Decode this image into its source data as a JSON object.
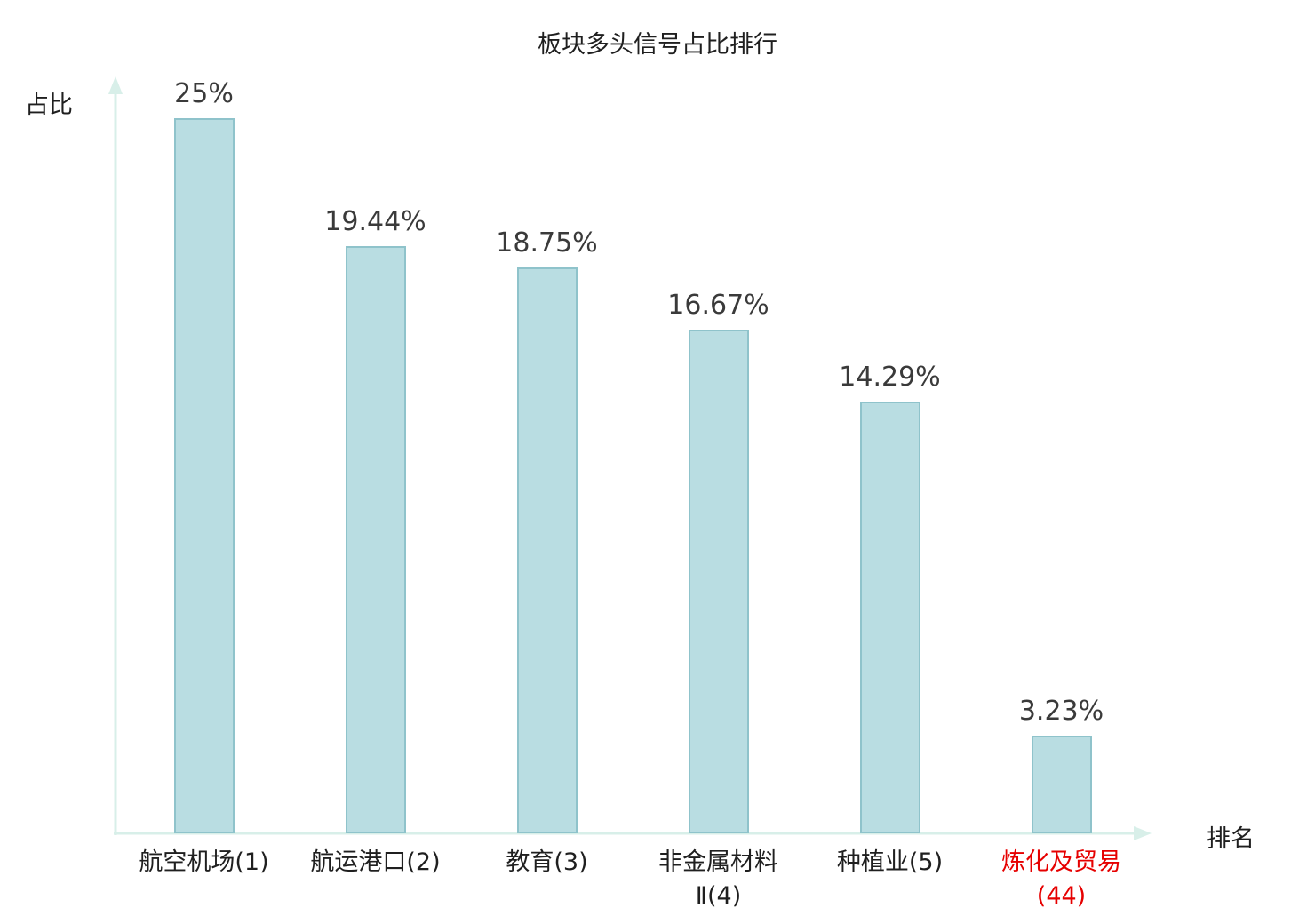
{
  "chart_data": {
    "type": "bar",
    "title": "板块多头信号占比排行",
    "ylabel": "占比",
    "xlabel": "排名",
    "categories": [
      "航空机场(1)",
      "航运港口(2)",
      "教育(3)",
      "非金属材料Ⅱ(4)",
      "种植业(5)",
      "炼化及贸易(44)"
    ],
    "values": [
      25,
      19.44,
      18.75,
      16.67,
      14.29,
      3.23
    ],
    "value_labels": [
      "25%",
      "19.44%",
      "18.75%",
      "16.67%",
      "14.29%",
      "3.23%"
    ],
    "ylim": [
      0,
      25
    ],
    "grid": false,
    "legend": false,
    "highlight_index": 5,
    "colors": {
      "bar_fill": "#b9dde2",
      "bar_border": "#8fc3cb",
      "axis": "#d8efe9",
      "value_label": "#3a3a3a",
      "category_label": "#1f1f1f",
      "highlight": "#e60000"
    }
  }
}
